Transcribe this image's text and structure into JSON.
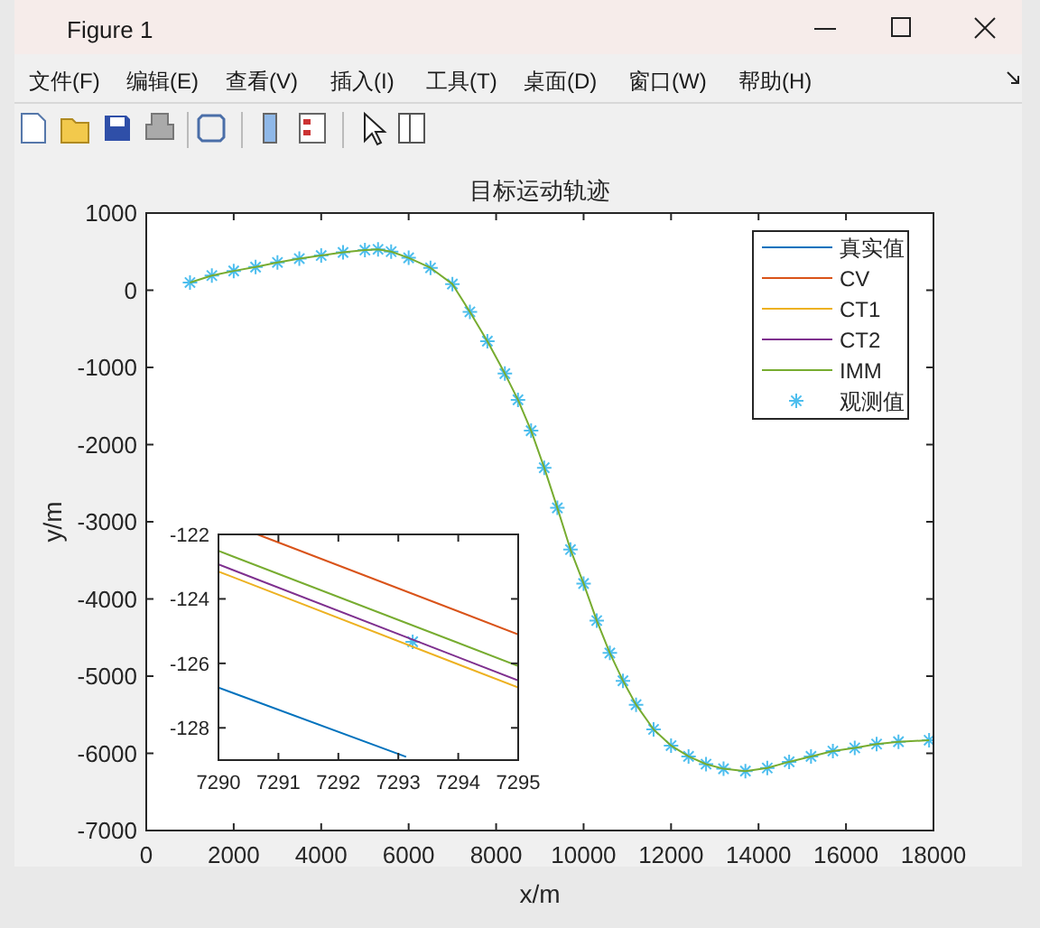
{
  "chart_data": [
    {
      "type": "other",
      "title": "Figure 1",
      "annotations": [
        "文件(F)",
        "编辑(E)",
        "查看(V)",
        "插入(I)",
        "工具(T)",
        "桌面(D)",
        "窗口(W)",
        "帮助(H)"
      ]
    },
    {
      "type": "line",
      "title": "目标运动轨迹",
      "xlabel": "x/m",
      "ylabel": "y/m",
      "legend": "top right",
      "grid": false,
      "xlim": [
        0,
        18000
      ],
      "xticks": [
        0,
        2000,
        4000,
        6000,
        8000,
        10000,
        12000,
        14000,
        16000,
        18000
      ],
      "ylim": [
        -7000,
        1000
      ],
      "yticks": [
        -7000,
        -6000,
        -5000,
        -4000,
        -3000,
        -2000,
        -1000,
        0,
        1000
      ],
      "x": [
        1000,
        1500,
        2000,
        2500,
        3000,
        3500,
        4000,
        4500,
        5000,
        5300,
        5600,
        6000,
        6500,
        7000,
        7400,
        7800,
        8200,
        8500,
        8800,
        9100,
        9400,
        9700,
        10000,
        10300,
        10600,
        10900,
        11200,
        11600,
        12000,
        12400,
        12800,
        13200,
        13700,
        14200,
        14700,
        15200,
        15700,
        16200,
        16700,
        17200,
        17900
      ],
      "series": [
        {
          "name": "真实值",
          "color": "#0072bd",
          "values": [
            null,
            null,
            null,
            null,
            null,
            null,
            null,
            null,
            null,
            null,
            null,
            null,
            null,
            null,
            null,
            null,
            null,
            null,
            null,
            null,
            null,
            null,
            null,
            null,
            null,
            null,
            null,
            null,
            null,
            null,
            null,
            null,
            null,
            null,
            null,
            null,
            null,
            null,
            null,
            null,
            null
          ]
        },
        {
          "name": "CV",
          "color": "#d95319",
          "values": [
            null,
            null,
            null,
            null,
            null,
            null,
            null,
            null,
            null,
            null,
            null,
            null,
            null,
            null,
            null,
            null,
            null,
            null,
            null,
            null,
            null,
            null,
            null,
            null,
            null,
            null,
            null,
            null,
            null,
            null,
            null,
            null,
            null,
            null,
            null,
            null,
            null,
            null,
            null,
            null,
            null
          ]
        },
        {
          "name": "CT1",
          "color": "#edb120",
          "values": [
            null,
            null,
            null,
            null,
            null,
            null,
            null,
            null,
            null,
            null,
            null,
            null,
            null,
            null,
            null,
            null,
            null,
            null,
            null,
            null,
            null,
            null,
            null,
            null,
            null,
            null,
            null,
            null,
            null,
            null,
            null,
            null,
            null,
            null,
            null,
            null,
            null,
            null,
            null,
            null,
            null
          ]
        },
        {
          "name": "CT2",
          "color": "#7e2f8e",
          "values": [
            null,
            null,
            null,
            null,
            null,
            null,
            null,
            null,
            null,
            null,
            null,
            null,
            null,
            null,
            null,
            null,
            null,
            null,
            null,
            null,
            null,
            null,
            null,
            null,
            null,
            null,
            null,
            null,
            null,
            null,
            null,
            null,
            null,
            null,
            null,
            null,
            null,
            null,
            null,
            null,
            null
          ]
        },
        {
          "name": "IMM",
          "color": "#77ac30",
          "values": [
            100,
            190,
            250,
            300,
            360,
            410,
            450,
            490,
            520,
            530,
            500,
            420,
            290,
            80,
            -280,
            -660,
            -1080,
            -1420,
            -1820,
            -2300,
            -2820,
            -3360,
            -3800,
            -4280,
            -4700,
            -5060,
            -5370,
            -5690,
            -5900,
            -6040,
            -6140,
            -6200,
            -6230,
            -6190,
            -6110,
            -6040,
            -5970,
            -5930,
            -5880,
            -5850,
            -5830
          ]
        },
        {
          "name": "观测值",
          "type": "scatter",
          "marker": "cross",
          "color": "#4dbeee",
          "values": [
            100,
            190,
            250,
            300,
            360,
            410,
            450,
            490,
            520,
            530,
            500,
            420,
            290,
            80,
            -280,
            -660,
            -1080,
            -1420,
            -1820,
            -2300,
            -2820,
            -3360,
            -3800,
            -4280,
            -4700,
            -5060,
            -5370,
            -5690,
            -5900,
            -6040,
            -6140,
            -6200,
            -6230,
            -6190,
            -6110,
            -6040,
            -5970,
            -5930,
            -5880,
            -5850,
            -5830
          ]
        }
      ]
    },
    {
      "type": "line",
      "grid": false,
      "xlim": [
        7290,
        7295
      ],
      "xticks": [
        7290,
        7291,
        7292,
        7293,
        7294,
        7295
      ],
      "ylim": [
        -129,
        -122
      ],
      "yticks": [
        -128,
        -126,
        -124,
        -122
      ],
      "series": [
        {
          "color": "#0072bd",
          "x": [
            7290,
            7293.13
          ],
          "values": [
            -126.75,
            -128.9
          ]
        },
        {
          "color": "#d95319",
          "x": [
            7290.65,
            7295
          ],
          "values": [
            -122,
            -125.1
          ]
        },
        {
          "color": "#edb120",
          "x": [
            7290,
            7295
          ],
          "values": [
            -123.15,
            -126.75
          ]
        },
        {
          "color": "#7e2f8e",
          "x": [
            7290,
            7295
          ],
          "values": [
            -122.93,
            -126.53
          ]
        },
        {
          "color": "#77ac30",
          "x": [
            7290,
            7295
          ],
          "values": [
            -122.51,
            -126.08
          ]
        },
        {
          "type": "scatter",
          "marker": "cross",
          "color": "#4dbeee",
          "x": [
            7293.24
          ],
          "values": [
            -125.33
          ]
        }
      ]
    }
  ]
}
